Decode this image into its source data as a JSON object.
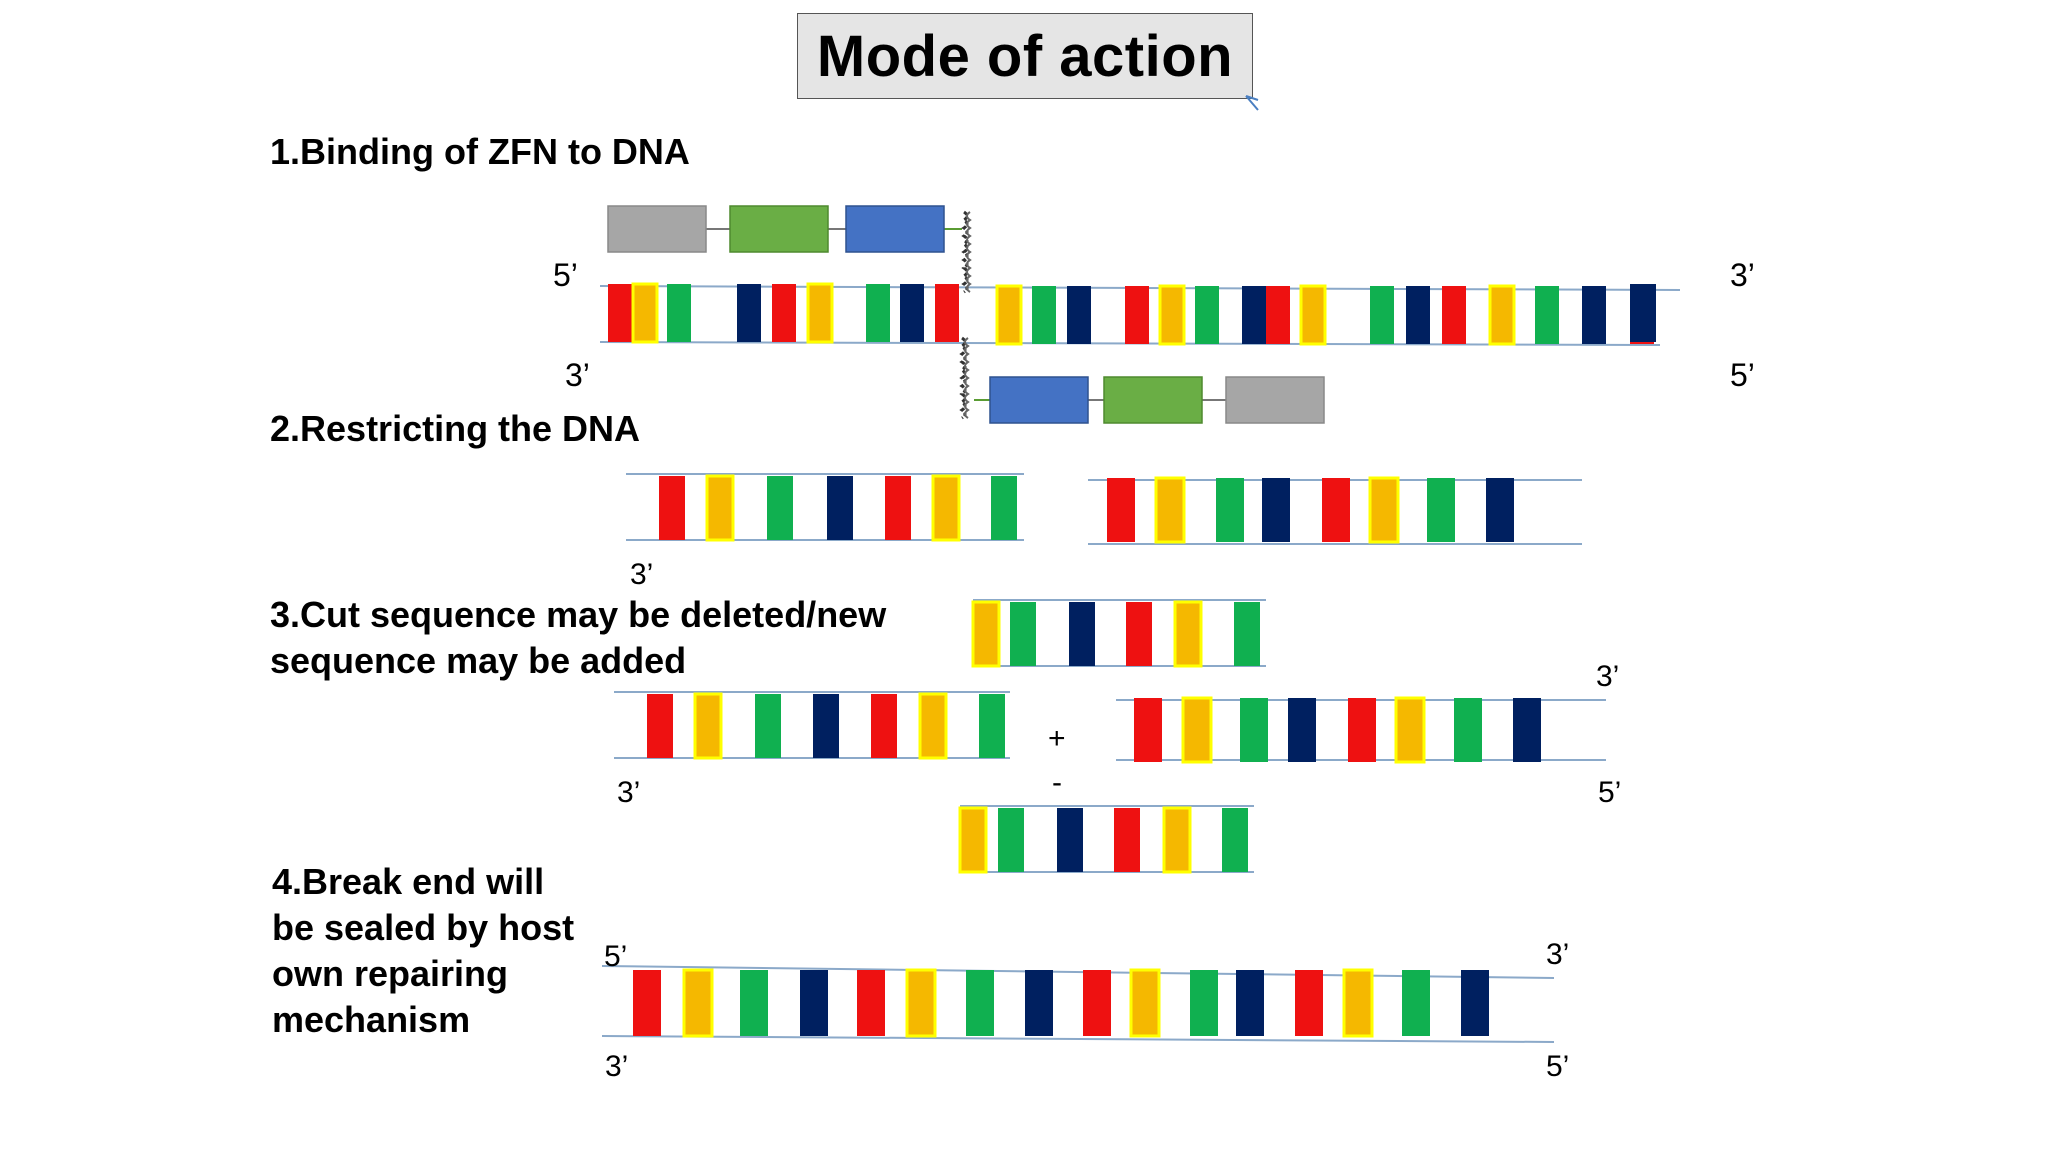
{
  "title": "Mode of action",
  "steps": [
    "1.Binding of ZFN to DNA",
    "2.Restricting the DNA",
    "3.Cut sequence  may be deleted/new\nsequence may be added",
    "4.Break end will\nbe sealed by host\nown repairing\nmechanism"
  ],
  "strand_ends": {
    "five": "5’",
    "three": "3’"
  },
  "operators": {
    "plus": "+",
    "minus": "-"
  },
  "colors": {
    "red": "#ee1111",
    "yellow_fill": "#f5b800",
    "yellow_border": "#ffff00",
    "green": "#10b050",
    "navy": "#002060",
    "zfn_gray": "#a6a6a6",
    "zfn_green": "#6aae45",
    "zfn_blue": "#4472c4",
    "strand_line": "#8ba9c9"
  },
  "sequences": {
    "full": [
      "red",
      "yellow",
      "green",
      "navy",
      "red",
      "yellow",
      "green",
      "navy",
      "red",
      "yellow",
      "green",
      "navy",
      "red",
      "yellow",
      "green",
      "navy",
      "red",
      "yellow",
      "green",
      "navy",
      "red",
      "yellow",
      "green",
      "navy",
      "red",
      "navy"
    ],
    "left_fragment": [
      "red",
      "yellow",
      "green",
      "navy",
      "red",
      "yellow",
      "green"
    ],
    "right_fragment": [
      "red",
      "yellow",
      "green",
      "navy",
      "red",
      "yellow",
      "green",
      "navy"
    ],
    "insert": [
      "yellow",
      "green",
      "navy",
      "red",
      "yellow",
      "green"
    ],
    "repaired": [
      "red",
      "yellow",
      "green",
      "navy",
      "red",
      "yellow",
      "green",
      "navy",
      "red",
      "yellow",
      "green",
      "navy",
      "red",
      "yellow",
      "green",
      "navy"
    ]
  },
  "zfn_domains": [
    "gray",
    "green",
    "blue"
  ]
}
